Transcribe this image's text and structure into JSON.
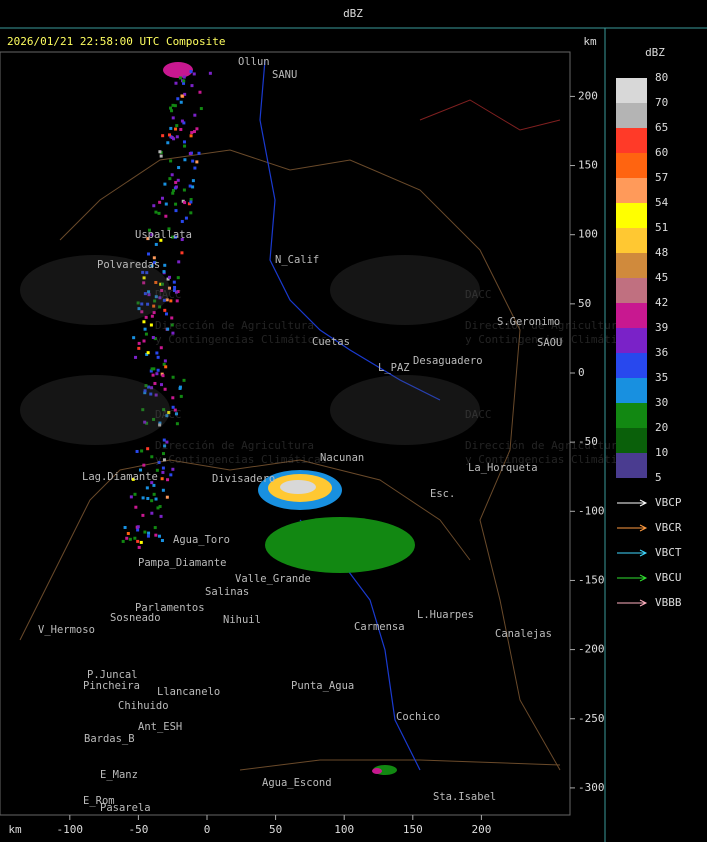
{
  "header": {
    "title": "dBZ"
  },
  "map": {
    "title": "2026/01/21 22:58:00 UTC Composite",
    "x_unit": "km",
    "y_unit": "km",
    "xticks": [
      -100,
      -50,
      0,
      50,
      100,
      150,
      200
    ],
    "yticks": [
      200,
      150,
      100,
      50,
      0,
      -50,
      -100,
      -150,
      -200,
      -250,
      -300
    ],
    "watermark": {
      "logo": "DACC",
      "subtitle_1": "Dirección de Agricultura",
      "subtitle_2": "y Contingencias Climáticas"
    },
    "places": [
      "Ollun",
      "SANU",
      "Uspallata",
      "Polvaredas",
      "N_Calif",
      "Cuetas",
      "L_PAZ",
      "Desaguadero",
      "S.Geronimo",
      "SAOU",
      "La_Horqueta",
      "Nacunan",
      "Lag.Diamante",
      "Divisadero",
      "Esc.",
      "Agua_Toro",
      "Pampa_Diamante",
      "Valle_Grande",
      "Salinas",
      "Parlamentos",
      "Sosneado",
      "Nihuil",
      "L.Huarpes",
      "Carmensa",
      "Canalejas",
      "V_Hermoso",
      "P.Juncal",
      "Pincheira",
      "Llancanelo",
      "Punta_Agua",
      "Chihuido",
      "Ant_ESH",
      "Cochico",
      "Bardas_B",
      "E_Manz",
      "Agua_Escond",
      "E_Rom",
      "Pasarela",
      "Sta.Isabel"
    ]
  },
  "scale": {
    "title": "dBZ",
    "levels": [
      80,
      70,
      65,
      60,
      57,
      54,
      51,
      48,
      45,
      42,
      39,
      36,
      35,
      30,
      20,
      10,
      5
    ],
    "colors": [
      "#d8d8d8",
      "#b4b4b4",
      "#ff3a28",
      "#ff6410",
      "#ff9a5a",
      "#ffff00",
      "#ffc832",
      "#d08a3c",
      "#c07080",
      "#c81890",
      "#7a22c8",
      "#2848ee",
      "#1890e0",
      "#128812",
      "#0a600a",
      "#4a3c90"
    ]
  },
  "legend": [
    {
      "name": "VBCP",
      "color": "#ffffff"
    },
    {
      "name": "VBCR",
      "color": "#ff9a40"
    },
    {
      "name": "VBCT",
      "color": "#40d8ff"
    },
    {
      "name": "VBCU",
      "color": "#30e030"
    },
    {
      "name": "VBBB",
      "color": "#ffb0c0"
    }
  ]
}
